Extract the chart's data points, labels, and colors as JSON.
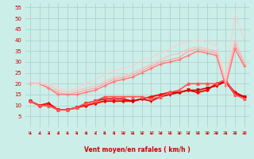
{
  "xlabel": "Vent moyen/en rafales ( km/h )",
  "bg_color": "#cceee8",
  "grid_color": "#aacccc",
  "x": [
    0,
    1,
    2,
    3,
    4,
    5,
    6,
    7,
    8,
    9,
    10,
    11,
    12,
    13,
    14,
    15,
    16,
    17,
    18,
    19,
    20,
    21,
    22,
    23
  ],
  "ylim": [
    0,
    57
  ],
  "yticks": [
    5,
    10,
    15,
    20,
    25,
    30,
    35,
    40,
    45,
    50,
    55
  ],
  "series": [
    {
      "color": "#ff0000",
      "lw": 1.4,
      "marker": "D",
      "ms": 2.0,
      "values": [
        12,
        10,
        11,
        8,
        8,
        9,
        10,
        11,
        12,
        12,
        12,
        12,
        13,
        14,
        15,
        16,
        16,
        17,
        16,
        17,
        20,
        21,
        16,
        14
      ]
    },
    {
      "color": "#cc0000",
      "lw": 1.2,
      "marker": "v",
      "ms": 2.5,
      "values": [
        12,
        10,
        10,
        8,
        8,
        9,
        11,
        12,
        13,
        13,
        13,
        12,
        13,
        12,
        14,
        15,
        16,
        17,
        17,
        18,
        19,
        21,
        15,
        14
      ]
    },
    {
      "color": "#ff5555",
      "lw": 1.2,
      "marker": "^",
      "ms": 2.5,
      "values": [
        12,
        10,
        10,
        8,
        8,
        9,
        11,
        12,
        14,
        14,
        14,
        14,
        14,
        13,
        14,
        16,
        17,
        20,
        20,
        20,
        20,
        22,
        15,
        13
      ]
    },
    {
      "color": "#ffaaaa",
      "lw": 1.0,
      "marker": "+",
      "ms": 3.5,
      "values": [
        20,
        20,
        18,
        16,
        15,
        16,
        17,
        18,
        20,
        22,
        23,
        24,
        26,
        28,
        30,
        31,
        32,
        35,
        36,
        35,
        34,
        20,
        38,
        29
      ]
    },
    {
      "color": "#ff7777",
      "lw": 1.0,
      "marker": "+",
      "ms": 3.5,
      "values": [
        20,
        20,
        18,
        15,
        15,
        15,
        16,
        17,
        19,
        21,
        22,
        23,
        25,
        27,
        29,
        30,
        31,
        33,
        35,
        34,
        33,
        19,
        36,
        28
      ]
    },
    {
      "color": "#ffbbbb",
      "lw": 0.8,
      "marker": null,
      "ms": 0,
      "values": [
        20,
        20,
        19,
        17,
        16,
        17,
        18,
        19,
        21,
        23,
        24,
        25,
        27,
        29,
        31,
        33,
        34,
        36,
        37,
        36,
        35,
        21,
        40,
        30
      ]
    },
    {
      "color": "#ffcccc",
      "lw": 0.8,
      "marker": null,
      "ms": 0,
      "values": [
        20,
        20,
        20,
        18,
        17,
        18,
        20,
        22,
        24,
        26,
        27,
        28,
        31,
        32,
        34,
        36,
        38,
        39,
        40,
        39,
        38,
        22,
        52,
        40
      ]
    }
  ],
  "arrow_color": "#cc0000"
}
